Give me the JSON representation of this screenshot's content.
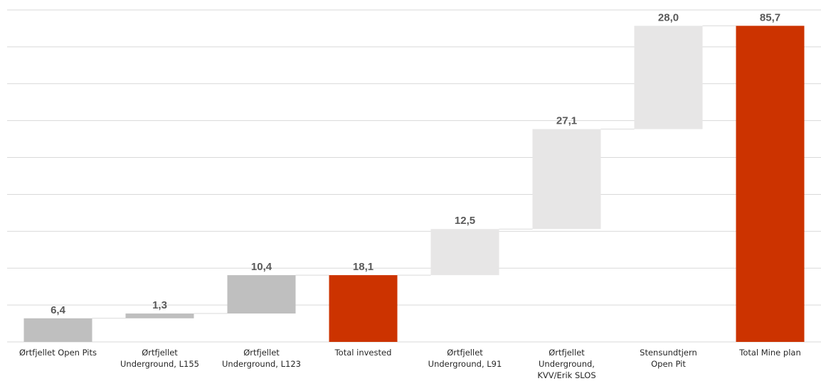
{
  "chart_data": {
    "type": "bar",
    "subtype": "waterfall",
    "title": "",
    "xlabel": "",
    "ylabel": "",
    "ylim": [
      0,
      90
    ],
    "grid": true,
    "legend": "none",
    "categories": [
      [
        "Ørtfjellet Open Pits"
      ],
      [
        "Ørtfjellet",
        "Underground, L155"
      ],
      [
        "Ørtfjellet",
        "Underground, L123"
      ],
      [
        "Total invested"
      ],
      [
        "Ørtfjellet",
        "Underground, L91"
      ],
      [
        "Ørtfjellet",
        "Underground,",
        "KVV/Erik SLOS"
      ],
      [
        "Stensundtjern",
        "Open Pit"
      ],
      [
        "Total Mine plan"
      ]
    ],
    "values": [
      6.4,
      1.3,
      10.4,
      18.1,
      12.5,
      27.1,
      28.0,
      85.7
    ],
    "value_labels": [
      "6,4",
      "1,3",
      "10,4",
      "18,1",
      "12,5",
      "27,1",
      "28,0",
      "85,7"
    ],
    "is_total": [
      false,
      false,
      false,
      true,
      false,
      false,
      false,
      true
    ],
    "colors": {
      "group1": "#bfbfbf",
      "group2": "#e7e6e6",
      "total": "#cc3300",
      "grid": "#d9d9d9",
      "label": "#595959"
    },
    "bar_groups": [
      "group1",
      "group1",
      "group1",
      "total",
      "group2",
      "group2",
      "group2",
      "total"
    ]
  }
}
